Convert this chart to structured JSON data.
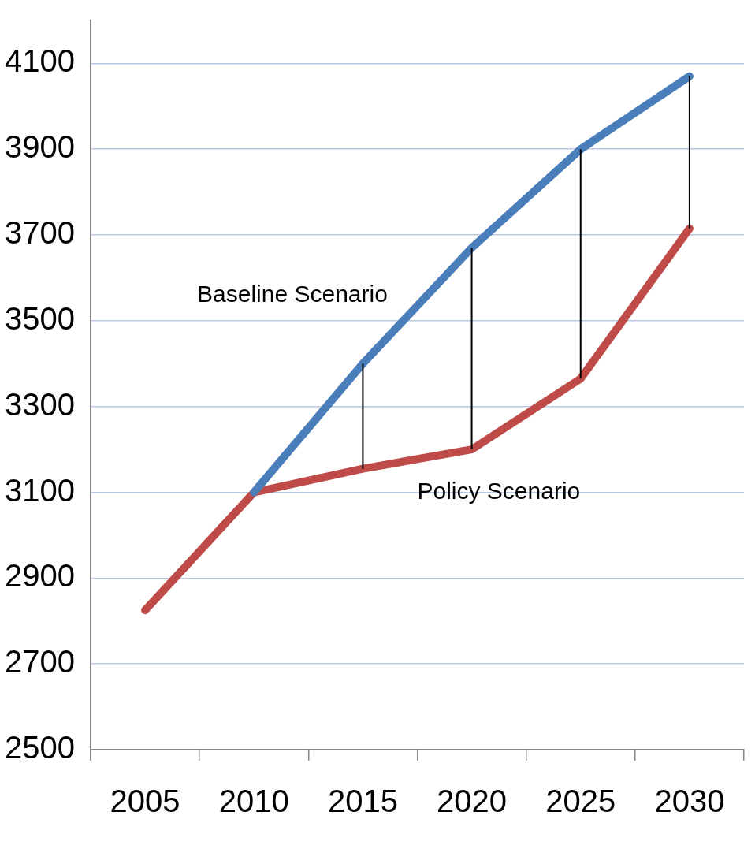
{
  "chart_data": {
    "type": "line",
    "categories": [
      "2005",
      "2010",
      "2015",
      "2020",
      "2025",
      "2030"
    ],
    "series": [
      {
        "name": "Baseline Scenario",
        "color": "#4a7ebb",
        "values": [
          null,
          3100,
          3400,
          3670,
          3900,
          4070
        ]
      },
      {
        "name": "Policy Scenario",
        "color": "#be4b48",
        "values": [
          2825,
          3100,
          3155,
          3200,
          3365,
          3715
        ],
        "errors": [
          null,
          null,
          [
            3155,
            3400
          ],
          [
            3200,
            3670
          ],
          [
            3365,
            3900
          ],
          [
            3715,
            4070
          ]
        ]
      }
    ],
    "ylim": [
      2500,
      4200
    ],
    "yticks": [
      2500,
      2700,
      2900,
      3100,
      3300,
      3500,
      3700,
      3900,
      4100
    ],
    "grid": "y",
    "legend": false,
    "marker": "none",
    "line_style": "solid"
  }
}
